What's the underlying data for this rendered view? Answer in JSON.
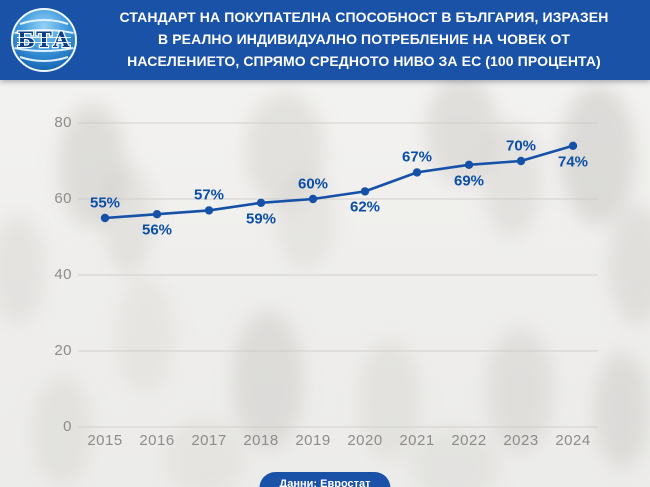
{
  "colors": {
    "header_bg": "#1a52a8",
    "line": "#1551a8",
    "data_label": "#0c4ea6",
    "axis_label": "#8d8c8a",
    "grid": "#c9c7c4",
    "pill_bg": "#1a52a8"
  },
  "header": {
    "logo_text": "БТА",
    "title_lines": [
      "СТАНДАРТ НА ПОКУПАТЕЛНА СПОСОБНОСТ В БЪЛГАРИЯ, ИЗРАЗЕН",
      "В РЕАЛНО ИНДИВИДУАЛНО ПОТРЕБЛЕНИЕ НА ЧОВЕК ОТ",
      "НАСЕЛЕНИЕТО, СПРЯМО СРЕДНОТО НИВО ЗА ЕС (100 ПРОЦЕНТА)"
    ]
  },
  "chart_data": {
    "type": "line",
    "title": "СТАНДАРТ НА ПОКУПАТЕЛНА СПОСОБНОСТ В БЪЛГАРИЯ, ИЗРАЗЕН В РЕАЛНО ИНДИВИДУАЛНО ПОТРЕБЛЕНИЕ НА ЧОВЕК ОТ НАСЕЛЕНИЕТО, СПРЯМО СРЕДНОТО НИВО ЗА ЕС (100 ПРОЦЕНТА)",
    "x": [
      "2015",
      "2016",
      "2017",
      "2018",
      "2019",
      "2020",
      "2021",
      "2022",
      "2023",
      "2024"
    ],
    "values": [
      55,
      56,
      57,
      59,
      60,
      62,
      67,
      69,
      70,
      74
    ],
    "point_labels": [
      "55%",
      "56%",
      "57%",
      "59%",
      "60%",
      "62%",
      "67%",
      "69%",
      "70%",
      "74%"
    ],
    "label_side": [
      "above",
      "below",
      "above",
      "below",
      "above",
      "below",
      "above",
      "below",
      "above",
      "below"
    ],
    "xlabel": "",
    "ylabel": "",
    "ylim": [
      0,
      80
    ],
    "yticks": [
      0,
      20,
      40,
      60,
      80
    ],
    "grid": "horizontal",
    "legend": "none"
  },
  "footer": {
    "source_label": "Данни: Евростат"
  }
}
